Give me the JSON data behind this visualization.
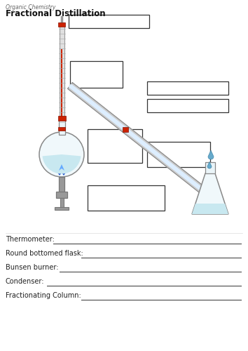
{
  "title": "Fractional Distillation",
  "subtitle": "Organic Chemistry",
  "bg_color": "#ffffff",
  "text_color": "#444444",
  "label_keys": [
    "Thermometer",
    "Round bottomed flask",
    "Bunsen burner",
    "Condenser",
    "Fractionating Column"
  ],
  "box_color": "#ffffff",
  "box_edge": "#333333",
  "flask_liquid_color": "#c8e8f0",
  "conical_liquid_color": "#c8e8f0",
  "flame_dark": "#2255cc",
  "flame_light": "#66aaff",
  "thermo_red": "#cc2200",
  "glass_fc": "#f0f8fb",
  "glass_ec": "#888888",
  "tube_fc": "#cccccc",
  "tube_ec": "#888888",
  "tube_inner": "#ddeeff",
  "grey_dark": "#777777",
  "grey_mid": "#999999",
  "grey_light": "#bbbbbb",
  "drop_fc": "#66aacc",
  "drop_ec": "#4488aa"
}
